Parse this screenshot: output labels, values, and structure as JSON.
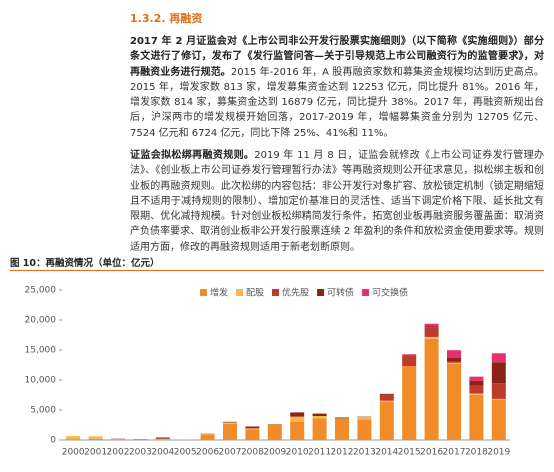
{
  "section": {
    "heading": "1.3.2. 再融资"
  },
  "paragraphs": [
    {
      "bold": "2017 年 2 月证监会对《上市公司非公开发行股票实施细则》（以下简称《实施细则》）部分条文进行了修订，发布了《发行监管问答—关于引导规范上市公司融资行为的监管要求》，对再融资业务进行规范。",
      "text": "2015 年-2016 年，A 股再融资家数和募集资金规模均达到历史高点。2015 年，增发家数 813 家，增发募集资金达到 12253 亿元，同比提升 81%。2016 年，增发家数 814 家，募集资金达到 16879 亿元，同比提升 38%。2017 年，再融资新规出台后，沪深两市的增发规模开始回落，2017-2019 年，增幅募集资金分别为 12705 亿元、7524 亿元和 6724 亿元，同比下降 25%、41%和 11%。"
    },
    {
      "bold": "证监会拟松绑再融资规则。",
      "text": "2019 年 11 月 8 日，证监会就修改《上市公司证券发行管理办法》、《创业板上市公司证券发行管理暂行办法》等再融资规则公开征求意见，拟松绑主板和创业板的再融资规则。此次松绑的内容包括：非公开发行对象扩容、放松锁定机制（锁定期缩短且不适用于减持规则的限制）、增加定价基准日的灵活性、适当下调定价格下限、延长批文有限期、优化减持规模。针对创业板松绑精简发行条件，拓宽创业板再融资服务覆盖面：取消资产负债率要求、取消创业板非公开发行股票连续 2 年盈利的条件和放松资金使用要求等。规则适用方面，修改的再融资规则适用于新老划断原则。"
    }
  ],
  "chart_data": {
    "type": "stacked_bar",
    "title": "图 10：再融资情况（单位：亿元）",
    "categories": [
      "2000",
      "2001",
      "2002",
      "2003",
      "2004",
      "2005",
      "2006",
      "2007",
      "2008",
      "2009",
      "2010",
      "2011",
      "2012",
      "2013",
      "2014",
      "2015",
      "2016",
      "2017",
      "2018",
      "2019"
    ],
    "series": [
      {
        "name": "增发",
        "color": "#f28c28",
        "values": [
          150,
          200,
          100,
          80,
          120,
          60,
          950,
          2700,
          1800,
          2500,
          3000,
          3600,
          3500,
          3400,
          6400,
          12253,
          16879,
          12705,
          7524,
          6724
        ]
      },
      {
        "name": "配股",
        "color": "#f7b84b",
        "values": [
          500,
          400,
          60,
          50,
          100,
          20,
          50,
          230,
          150,
          100,
          900,
          400,
          100,
          470,
          150,
          40,
          300,
          160,
          230,
          130
        ]
      },
      {
        "name": "优先股",
        "color": "#c0392b",
        "values": [
          0,
          0,
          0,
          0,
          0,
          0,
          0,
          0,
          0,
          0,
          0,
          0,
          0,
          0,
          900,
          1600,
          1600,
          200,
          1300,
          2600
        ]
      },
      {
        "name": "可转债",
        "color": "#8b2318",
        "values": [
          0,
          0,
          50,
          30,
          200,
          0,
          40,
          100,
          300,
          50,
          700,
          400,
          150,
          50,
          200,
          100,
          200,
          600,
          800,
          3500
        ]
      },
      {
        "name": "可交换债",
        "color": "#e6316e",
        "values": [
          0,
          0,
          0,
          0,
          0,
          0,
          0,
          0,
          0,
          0,
          0,
          0,
          0,
          0,
          50,
          300,
          400,
          1300,
          700,
          1500
        ]
      }
    ],
    "ylim": [
      0,
      25000
    ],
    "yticks": [
      {
        "value": 0,
        "label": "0"
      },
      {
        "value": 5000,
        "label": "5,000"
      },
      {
        "value": 10000,
        "label": "10,000"
      },
      {
        "value": 15000,
        "label": "15,000"
      },
      {
        "value": 20000,
        "label": "20,000"
      },
      {
        "value": 25000,
        "label": "25,000"
      }
    ],
    "grid": false,
    "legend": "top"
  }
}
